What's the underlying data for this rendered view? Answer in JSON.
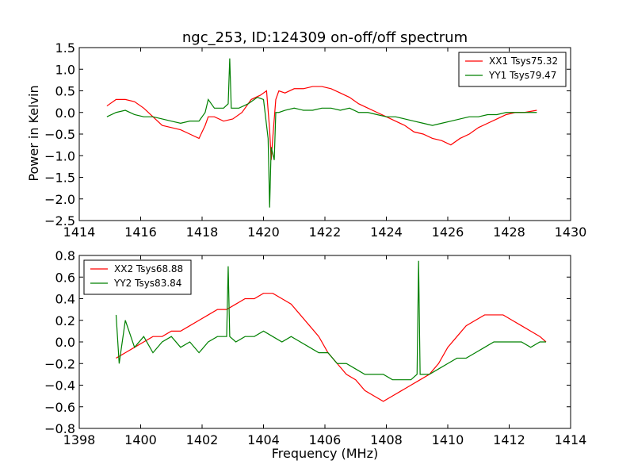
{
  "figure": {
    "title": "ngc_253, ID:124309 on-off/off spectrum",
    "ylabel": "Power in Kelvin",
    "xlabel": "Frequency (MHz)"
  },
  "colors": {
    "xx": "#ff0000",
    "yy": "#008000"
  },
  "chart_data": [
    {
      "type": "line",
      "title": "ngc_253, ID:124309 on-off/off spectrum",
      "xlabel": "",
      "ylabel": "Power in Kelvin",
      "xlim": [
        1414,
        1430
      ],
      "ylim": [
        -2.5,
        1.5
      ],
      "xticks": [
        "1414",
        "1416",
        "1418",
        "1420",
        "1422",
        "1424",
        "1426",
        "1428",
        "1430"
      ],
      "yticks": [
        "1.5",
        "1.0",
        "0.5",
        "0.0",
        "−0.5",
        "−1.0",
        "−1.5",
        "−2.0",
        "−2.5"
      ],
      "ytick_values": [
        1.5,
        1.0,
        0.5,
        0.0,
        -0.5,
        -1.0,
        -1.5,
        -2.0,
        -2.5
      ],
      "xtick_values": [
        1414,
        1416,
        1418,
        1420,
        1422,
        1424,
        1426,
        1428,
        1430
      ],
      "grid": false,
      "legend_position": "top-right",
      "series": [
        {
          "name": "XX1 Tsys75.32",
          "color": "#ff0000",
          "x": [
            1414.9,
            1415.2,
            1415.5,
            1415.8,
            1416.1,
            1416.4,
            1416.7,
            1417.0,
            1417.3,
            1417.6,
            1417.9,
            1418.1,
            1418.2,
            1418.4,
            1418.7,
            1419.0,
            1419.3,
            1419.6,
            1419.9,
            1420.1,
            1420.2,
            1420.25,
            1420.3,
            1420.4,
            1420.5,
            1420.7,
            1421.0,
            1421.3,
            1421.6,
            1421.9,
            1422.2,
            1422.5,
            1422.8,
            1423.1,
            1423.4,
            1423.7,
            1424.0,
            1424.3,
            1424.6,
            1424.9,
            1425.2,
            1425.5,
            1425.8,
            1426.1,
            1426.4,
            1426.7,
            1427.0,
            1427.3,
            1427.6,
            1427.9,
            1428.2,
            1428.5,
            1428.9
          ],
          "y": [
            0.15,
            0.3,
            0.3,
            0.25,
            0.1,
            -0.1,
            -0.3,
            -0.35,
            -0.4,
            -0.5,
            -0.6,
            -0.3,
            -0.1,
            -0.1,
            -0.2,
            -0.15,
            0.0,
            0.3,
            0.4,
            0.5,
            -0.4,
            -1.1,
            -0.6,
            0.3,
            0.5,
            0.45,
            0.55,
            0.55,
            0.6,
            0.6,
            0.55,
            0.45,
            0.35,
            0.2,
            0.1,
            0.0,
            -0.1,
            -0.2,
            -0.3,
            -0.45,
            -0.5,
            -0.6,
            -0.65,
            -0.75,
            -0.6,
            -0.5,
            -0.35,
            -0.25,
            -0.15,
            -0.05,
            0.0,
            0.0,
            0.05
          ]
        },
        {
          "name": "YY1 Tsys79.47",
          "color": "#008000",
          "x": [
            1414.9,
            1415.2,
            1415.5,
            1415.8,
            1416.1,
            1416.4,
            1416.7,
            1417.0,
            1417.3,
            1417.6,
            1417.9,
            1418.1,
            1418.2,
            1418.4,
            1418.7,
            1418.85,
            1418.9,
            1418.95,
            1419.2,
            1419.5,
            1419.8,
            1420.0,
            1420.15,
            1420.2,
            1420.25,
            1420.35,
            1420.4,
            1420.5,
            1420.7,
            1421.0,
            1421.3,
            1421.6,
            1421.9,
            1422.2,
            1422.5,
            1422.8,
            1423.1,
            1423.4,
            1423.7,
            1424.0,
            1424.3,
            1424.6,
            1424.9,
            1425.2,
            1425.5,
            1425.8,
            1426.1,
            1426.4,
            1426.7,
            1427.0,
            1427.3,
            1427.6,
            1427.9,
            1428.2,
            1428.5,
            1428.9
          ],
          "y": [
            -0.1,
            0.0,
            0.05,
            -0.05,
            -0.1,
            -0.1,
            -0.15,
            -0.2,
            -0.25,
            -0.2,
            -0.2,
            0.0,
            0.3,
            0.1,
            0.1,
            0.2,
            1.25,
            0.1,
            0.1,
            0.2,
            0.35,
            0.3,
            -0.6,
            -2.2,
            -0.8,
            -1.1,
            0.0,
            0.0,
            0.05,
            0.1,
            0.05,
            0.05,
            0.1,
            0.1,
            0.05,
            0.1,
            0.0,
            0.0,
            -0.05,
            -0.1,
            -0.1,
            -0.15,
            -0.2,
            -0.25,
            -0.3,
            -0.25,
            -0.2,
            -0.15,
            -0.1,
            -0.1,
            -0.05,
            -0.05,
            0.0,
            0.0,
            0.0,
            0.0
          ]
        }
      ]
    },
    {
      "type": "line",
      "title": "",
      "xlabel": "Frequency (MHz)",
      "ylabel": "",
      "xlim": [
        1398,
        1414
      ],
      "ylim": [
        -0.8,
        0.8
      ],
      "xticks": [
        "1398",
        "1400",
        "1402",
        "1404",
        "1406",
        "1408",
        "1410",
        "1412",
        "1414"
      ],
      "yticks": [
        "0.8",
        "0.6",
        "0.4",
        "0.2",
        "0.0",
        "−0.2",
        "−0.4",
        "−0.6",
        "−0.8"
      ],
      "ytick_values": [
        0.8,
        0.6,
        0.4,
        0.2,
        0.0,
        -0.2,
        -0.4,
        -0.6,
        -0.8
      ],
      "xtick_values": [
        1398,
        1400,
        1402,
        1404,
        1406,
        1408,
        1410,
        1412,
        1414
      ],
      "grid": false,
      "legend_position": "top-left",
      "series": [
        {
          "name": "XX2 Tsys68.88",
          "color": "#ff0000",
          "x": [
            1399.2,
            1399.5,
            1399.8,
            1400.1,
            1400.4,
            1400.7,
            1401.0,
            1401.3,
            1401.6,
            1401.9,
            1402.2,
            1402.5,
            1402.8,
            1403.1,
            1403.4,
            1403.7,
            1404.0,
            1404.3,
            1404.6,
            1404.9,
            1405.2,
            1405.5,
            1405.8,
            1406.1,
            1406.4,
            1406.7,
            1407.0,
            1407.3,
            1407.6,
            1407.9,
            1408.2,
            1408.5,
            1408.8,
            1409.1,
            1409.4,
            1409.7,
            1410.0,
            1410.3,
            1410.6,
            1410.9,
            1411.2,
            1411.5,
            1411.8,
            1412.1,
            1412.4,
            1412.7,
            1413.0,
            1413.2
          ],
          "y": [
            -0.15,
            -0.1,
            -0.05,
            0.0,
            0.05,
            0.05,
            0.1,
            0.1,
            0.15,
            0.2,
            0.25,
            0.3,
            0.3,
            0.35,
            0.4,
            0.4,
            0.45,
            0.45,
            0.4,
            0.35,
            0.25,
            0.15,
            0.05,
            -0.1,
            -0.2,
            -0.3,
            -0.35,
            -0.45,
            -0.5,
            -0.55,
            -0.5,
            -0.45,
            -0.4,
            -0.35,
            -0.3,
            -0.2,
            -0.05,
            0.05,
            0.15,
            0.2,
            0.25,
            0.25,
            0.25,
            0.2,
            0.15,
            0.1,
            0.05,
            0.0
          ]
        },
        {
          "name": "YY2 Tsys83.84",
          "color": "#008000",
          "x": [
            1399.2,
            1399.3,
            1399.5,
            1399.8,
            1400.1,
            1400.4,
            1400.7,
            1401.0,
            1401.3,
            1401.6,
            1401.9,
            1402.2,
            1402.5,
            1402.8,
            1402.85,
            1402.9,
            1403.1,
            1403.4,
            1403.7,
            1404.0,
            1404.3,
            1404.6,
            1404.9,
            1405.2,
            1405.5,
            1405.8,
            1406.1,
            1406.4,
            1406.7,
            1407.0,
            1407.3,
            1407.6,
            1407.9,
            1408.2,
            1408.5,
            1408.8,
            1409.0,
            1409.05,
            1409.1,
            1409.4,
            1409.7,
            1410.0,
            1410.3,
            1410.6,
            1410.9,
            1411.2,
            1411.5,
            1411.8,
            1412.1,
            1412.4,
            1412.7,
            1413.0,
            1413.2
          ],
          "y": [
            0.25,
            -0.2,
            0.2,
            -0.05,
            0.05,
            -0.1,
            0.0,
            0.05,
            -0.05,
            0.0,
            -0.1,
            0.0,
            0.05,
            0.05,
            0.7,
            0.05,
            0.0,
            0.05,
            0.05,
            0.1,
            0.05,
            0.0,
            0.05,
            0.0,
            -0.05,
            -0.1,
            -0.1,
            -0.2,
            -0.2,
            -0.25,
            -0.3,
            -0.3,
            -0.3,
            -0.35,
            -0.35,
            -0.35,
            -0.3,
            0.75,
            -0.3,
            -0.3,
            -0.25,
            -0.2,
            -0.15,
            -0.15,
            -0.1,
            -0.05,
            0.0,
            0.0,
            0.0,
            0.0,
            -0.05,
            0.0,
            0.0
          ]
        }
      ]
    }
  ]
}
